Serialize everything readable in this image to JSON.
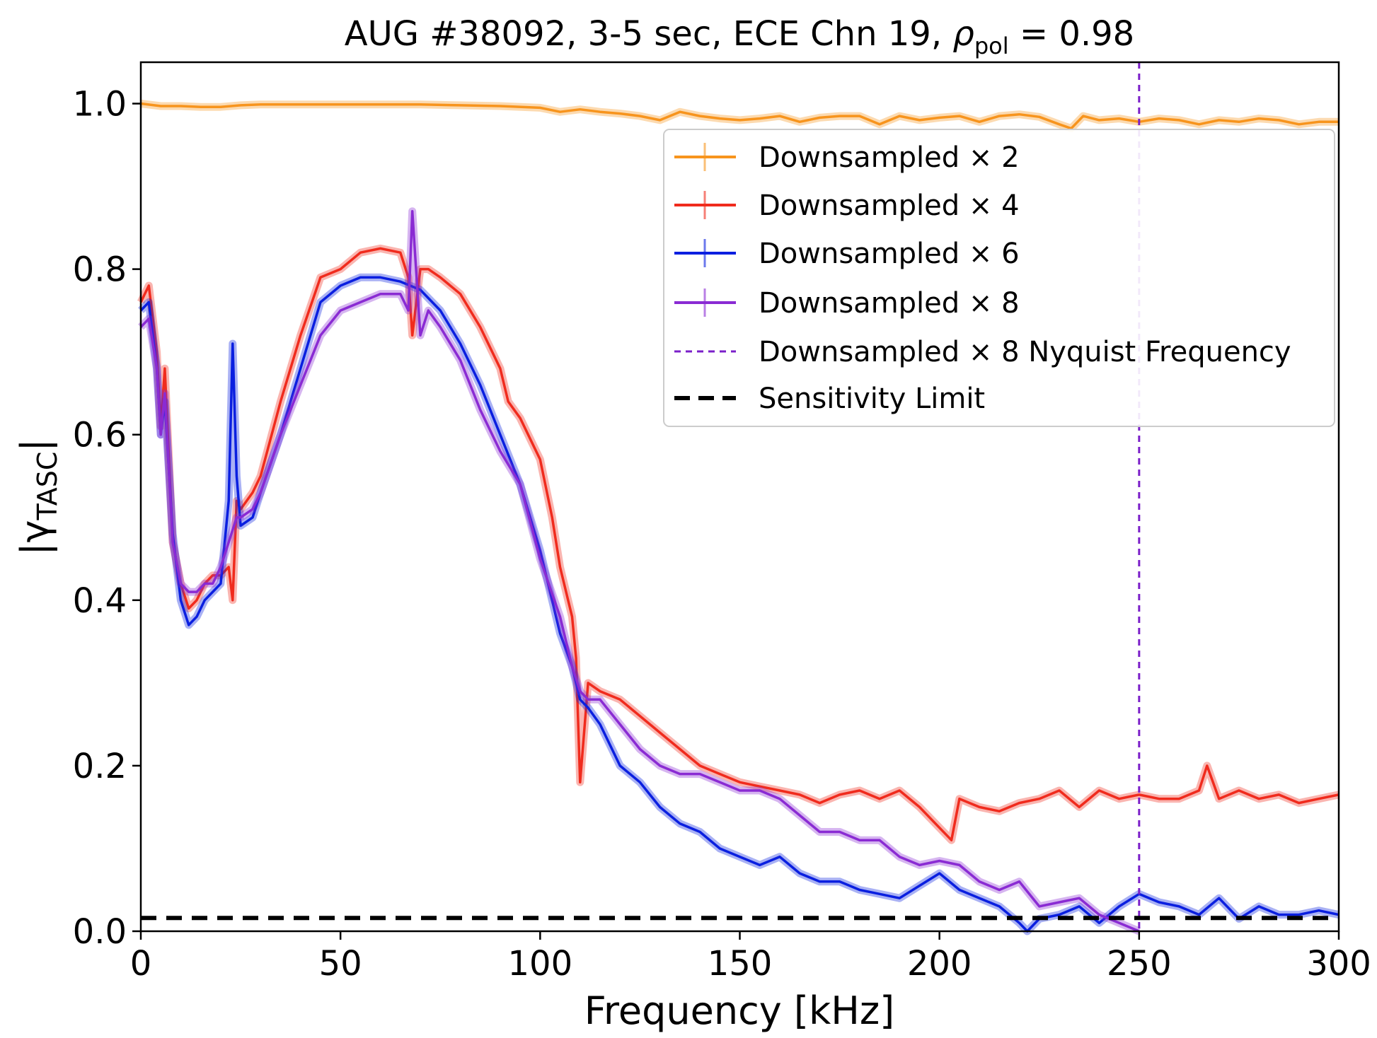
{
  "chart_data": {
    "type": "line",
    "title_main": "AUG #38092, 3-5 sec, ECE Chn 19, ",
    "title_rho": "ρ",
    "title_rho_sub": "pol",
    "title_eq": " = 0.98",
    "xlabel": "Frequency [kHz]",
    "ylabel_main": "|γ",
    "ylabel_sub": "TASC",
    "ylabel_close": "|",
    "xlim": [
      0,
      300
    ],
    "ylim": [
      0,
      1.05
    ],
    "xticks": [
      0,
      50,
      100,
      150,
      200,
      250,
      300
    ],
    "xtick_labels": [
      "0",
      "50",
      "100",
      "150",
      "200",
      "250",
      "300"
    ],
    "yticks": [
      0.0,
      0.2,
      0.4,
      0.6,
      0.8,
      1.0
    ],
    "ytick_labels": [
      "0.0",
      "0.2",
      "0.4",
      "0.6",
      "0.8",
      "1.0"
    ],
    "legend_position": "upper-right",
    "series": [
      {
        "name": "Downsampled × 2",
        "color": "#f7941d",
        "x": [
          0,
          5,
          10,
          15,
          20,
          25,
          30,
          40,
          50,
          60,
          70,
          80,
          90,
          100,
          105,
          110,
          115,
          120,
          125,
          130,
          135,
          140,
          145,
          150,
          155,
          160,
          165,
          170,
          175,
          180,
          185,
          190,
          195,
          200,
          205,
          210,
          215,
          220,
          225,
          230,
          233,
          236,
          240,
          245,
          250,
          255,
          260,
          265,
          270,
          275,
          280,
          285,
          290,
          295,
          300
        ],
        "y": [
          1.0,
          0.997,
          0.997,
          0.996,
          0.996,
          0.998,
          0.999,
          0.999,
          0.999,
          0.999,
          0.999,
          0.998,
          0.997,
          0.995,
          0.99,
          0.993,
          0.99,
          0.988,
          0.985,
          0.98,
          0.99,
          0.985,
          0.982,
          0.98,
          0.982,
          0.985,
          0.978,
          0.983,
          0.985,
          0.985,
          0.975,
          0.985,
          0.98,
          0.983,
          0.985,
          0.978,
          0.985,
          0.987,
          0.984,
          0.975,
          0.97,
          0.985,
          0.98,
          0.982,
          0.978,
          0.982,
          0.98,
          0.975,
          0.98,
          0.978,
          0.982,
          0.98,
          0.975,
          0.978,
          0.978
        ]
      },
      {
        "name": "Downsampled × 4",
        "color": "#f02b1d",
        "x": [
          0,
          2,
          4,
          5,
          6,
          8,
          10,
          12,
          14,
          16,
          18,
          20,
          22,
          23,
          24,
          25,
          28,
          30,
          35,
          40,
          45,
          50,
          55,
          60,
          65,
          67,
          68,
          70,
          72,
          75,
          80,
          85,
          90,
          92,
          95,
          100,
          103,
          105,
          108,
          109,
          110,
          112,
          115,
          120,
          125,
          130,
          135,
          140,
          145,
          150,
          155,
          160,
          165,
          170,
          175,
          180,
          185,
          190,
          195,
          200,
          203,
          205,
          210,
          215,
          220,
          225,
          230,
          235,
          240,
          245,
          250,
          255,
          260,
          265,
          267,
          270,
          275,
          280,
          285,
          290,
          295,
          300
        ],
        "y": [
          0.76,
          0.78,
          0.7,
          0.61,
          0.68,
          0.47,
          0.42,
          0.39,
          0.4,
          0.42,
          0.43,
          0.43,
          0.44,
          0.4,
          0.52,
          0.51,
          0.53,
          0.55,
          0.64,
          0.72,
          0.79,
          0.8,
          0.82,
          0.825,
          0.82,
          0.79,
          0.72,
          0.8,
          0.8,
          0.79,
          0.77,
          0.73,
          0.68,
          0.64,
          0.62,
          0.57,
          0.5,
          0.44,
          0.38,
          0.33,
          0.18,
          0.3,
          0.29,
          0.28,
          0.26,
          0.24,
          0.22,
          0.2,
          0.19,
          0.18,
          0.175,
          0.17,
          0.165,
          0.155,
          0.165,
          0.17,
          0.16,
          0.17,
          0.15,
          0.125,
          0.11,
          0.16,
          0.15,
          0.145,
          0.155,
          0.16,
          0.17,
          0.15,
          0.17,
          0.16,
          0.165,
          0.16,
          0.16,
          0.17,
          0.2,
          0.16,
          0.17,
          0.16,
          0.165,
          0.155,
          0.16,
          0.165
        ]
      },
      {
        "name": "Downsampled × 6",
        "color": "#0a1fe0",
        "x": [
          0,
          2,
          4,
          5,
          6,
          8,
          10,
          12,
          14,
          16,
          18,
          20,
          22,
          23,
          24,
          25,
          28,
          30,
          35,
          40,
          45,
          50,
          55,
          60,
          65,
          70,
          75,
          80,
          85,
          90,
          95,
          100,
          105,
          108,
          110,
          112,
          115,
          120,
          125,
          130,
          135,
          140,
          145,
          150,
          155,
          160,
          165,
          170,
          175,
          180,
          185,
          190,
          195,
          200,
          205,
          210,
          215,
          220,
          222,
          225,
          230,
          235,
          240,
          245,
          250,
          255,
          260,
          265,
          270,
          275,
          280,
          285,
          290,
          295,
          300
        ],
        "y": [
          0.75,
          0.76,
          0.68,
          0.6,
          0.64,
          0.48,
          0.4,
          0.37,
          0.38,
          0.4,
          0.41,
          0.42,
          0.52,
          0.71,
          0.55,
          0.49,
          0.5,
          0.53,
          0.6,
          0.68,
          0.76,
          0.78,
          0.79,
          0.79,
          0.785,
          0.775,
          0.75,
          0.71,
          0.66,
          0.6,
          0.54,
          0.46,
          0.36,
          0.32,
          0.28,
          0.27,
          0.25,
          0.2,
          0.18,
          0.15,
          0.13,
          0.12,
          0.1,
          0.09,
          0.08,
          0.09,
          0.07,
          0.06,
          0.06,
          0.05,
          0.045,
          0.04,
          0.055,
          0.07,
          0.05,
          0.04,
          0.03,
          0.01,
          0.0,
          0.015,
          0.02,
          0.03,
          0.01,
          0.03,
          0.045,
          0.035,
          0.03,
          0.02,
          0.04,
          0.015,
          0.03,
          0.02,
          0.02,
          0.025,
          0.02
        ]
      },
      {
        "name": "Downsampled × 8",
        "color": "#8a2bd3",
        "x": [
          0,
          2,
          4,
          5,
          6,
          8,
          10,
          12,
          14,
          16,
          18,
          20,
          22,
          24,
          25,
          28,
          30,
          35,
          40,
          45,
          50,
          55,
          60,
          65,
          67,
          68,
          70,
          72,
          75,
          80,
          85,
          90,
          95,
          100,
          105,
          108,
          110,
          112,
          115,
          120,
          125,
          130,
          135,
          140,
          145,
          150,
          155,
          160,
          165,
          170,
          175,
          180,
          185,
          190,
          195,
          200,
          205,
          210,
          215,
          220,
          225,
          230,
          235,
          240,
          245,
          250
        ],
        "y": [
          0.73,
          0.74,
          0.68,
          0.6,
          0.65,
          0.47,
          0.42,
          0.41,
          0.41,
          0.42,
          0.42,
          0.44,
          0.47,
          0.5,
          0.5,
          0.51,
          0.53,
          0.6,
          0.66,
          0.72,
          0.75,
          0.76,
          0.77,
          0.77,
          0.75,
          0.87,
          0.72,
          0.75,
          0.73,
          0.69,
          0.63,
          0.58,
          0.54,
          0.45,
          0.38,
          0.32,
          0.29,
          0.28,
          0.28,
          0.25,
          0.22,
          0.2,
          0.19,
          0.19,
          0.18,
          0.17,
          0.17,
          0.16,
          0.14,
          0.12,
          0.12,
          0.11,
          0.11,
          0.09,
          0.08,
          0.085,
          0.08,
          0.06,
          0.05,
          0.06,
          0.03,
          0.035,
          0.04,
          0.02,
          0.01,
          0.0
        ]
      }
    ],
    "nyquist": {
      "name": "Downsampled × 8 Nyquist Frequency",
      "x": 250,
      "color": "#7b1fc9"
    },
    "sensitivity": {
      "name": "Sensitivity Limit",
      "y": 0.016,
      "color": "#000000"
    }
  }
}
